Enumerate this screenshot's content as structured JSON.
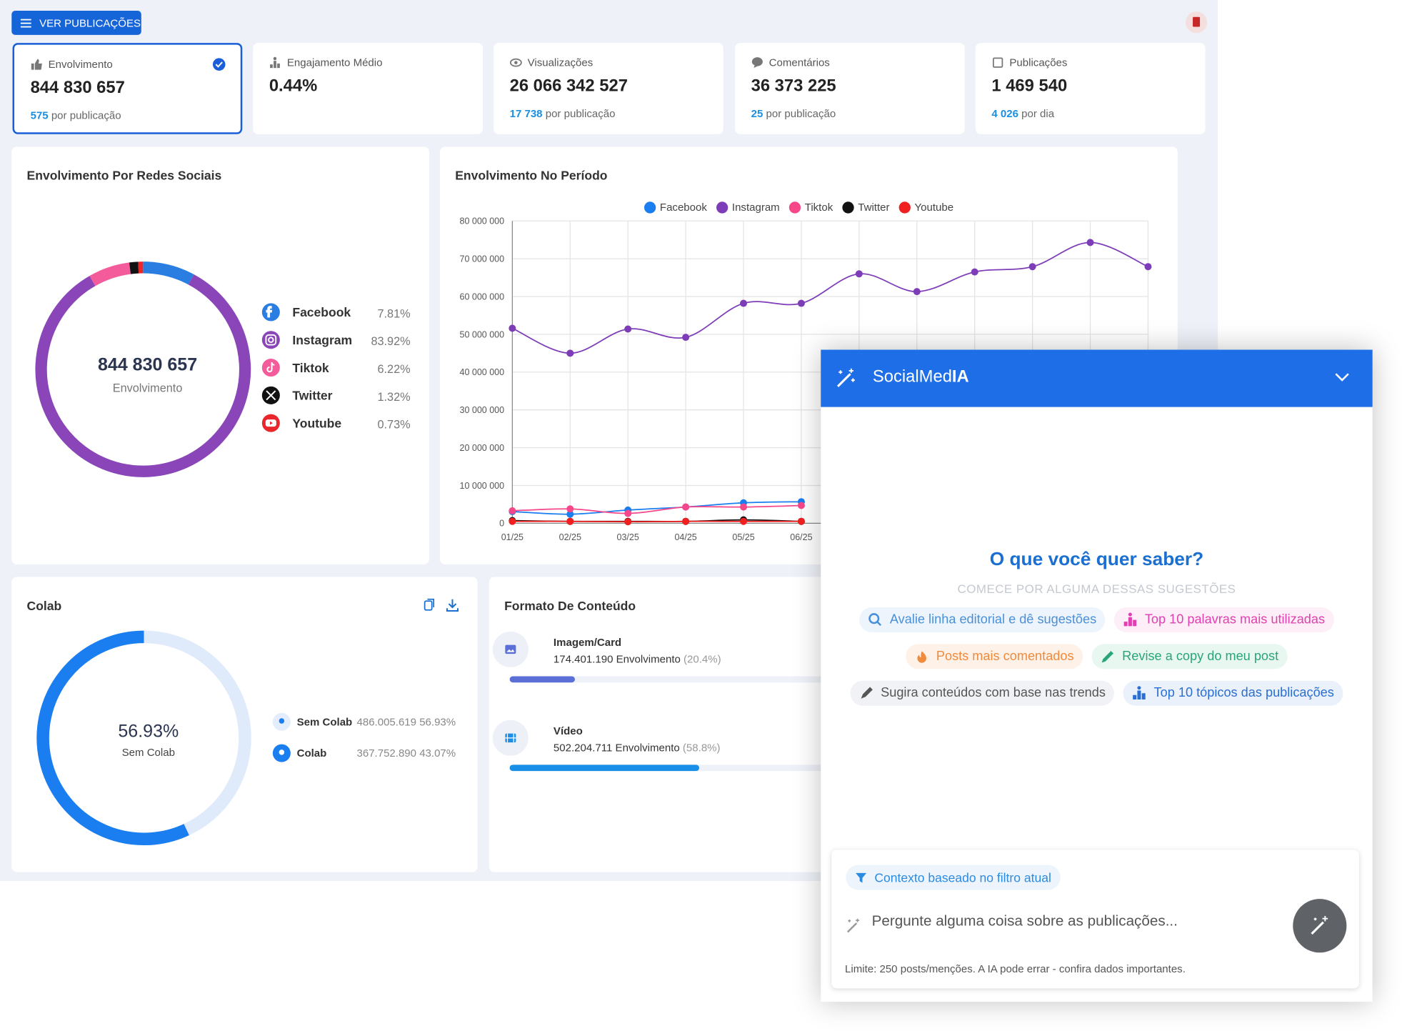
{
  "toolbar": {
    "button": "VER PUBLICAÇÕES"
  },
  "kpis": [
    {
      "label": "Envolvimento",
      "value": "844 830 657",
      "sub_value": "575",
      "sub_label": "por publicação"
    },
    {
      "label": "Engajamento Médio",
      "value": "0.44%"
    },
    {
      "label": "Visualizações",
      "value": "26 066 342 527",
      "sub_value": "17 738",
      "sub_label": "por publicação"
    },
    {
      "label": "Comentários",
      "value": "36 373 225",
      "sub_value": "25",
      "sub_label": "por publicação"
    },
    {
      "label": "Publicações",
      "value": "1 469 540",
      "sub_value": "4 026",
      "sub_label": "por dia"
    }
  ],
  "chart_data": [
    {
      "type": "donut",
      "title": "Envolvimento Por Redes Sociais",
      "center_value": "844 830 657",
      "center_label": "Envolvimento",
      "categories": [
        "Facebook",
        "Instagram",
        "Tiktok",
        "Twitter",
        "Youtube"
      ],
      "values": [
        7.81,
        83.92,
        6.22,
        1.32,
        0.73
      ],
      "value_labels": [
        "7.81%",
        "83.92%",
        "6.22%",
        "1.32%",
        "0.73%"
      ],
      "colors": [
        "#2a7de1",
        "#8a46b8",
        "#f45b9b",
        "#111111",
        "#e8262b"
      ]
    },
    {
      "type": "line",
      "title": "Envolvimento No Período",
      "categories": [
        "01/25",
        "02/25",
        "03/25",
        "04/25",
        "05/25",
        "06/25",
        null,
        null,
        null,
        null,
        null,
        null
      ],
      "ylim": [
        0,
        80000000
      ],
      "yticks": [
        0,
        {
          "value": 10000000,
          "label": "10 000 000"
        },
        {
          "value": 20000000,
          "label": "20 000 000"
        },
        {
          "value": 30000000,
          "label": "30 000 000"
        },
        {
          "value": 40000000,
          "label": "40 000 000"
        },
        {
          "value": 50000000,
          "label": "50 000 000"
        },
        {
          "value": 60000000,
          "label": "60 000 000"
        },
        {
          "value": 70000000,
          "label": "70 000 000"
        },
        {
          "value": 80000000,
          "label": "80 000 000"
        }
      ],
      "grid": true,
      "legend": "top",
      "series": [
        {
          "name": "Facebook",
          "color": "#1a7ef0",
          "values": [
            3100000,
            2400000,
            3500000,
            4300000,
            5400000,
            5700000,
            null,
            null,
            null,
            null,
            null,
            null
          ]
        },
        {
          "name": "Instagram",
          "color": "#7e3db8",
          "values": [
            51600000,
            45000000,
            51400000,
            49200000,
            58200000,
            58200000,
            66000000,
            61300000,
            66500000,
            67900000,
            74300000,
            67900000
          ]
        },
        {
          "name": "Tiktok",
          "color": "#f5478a",
          "values": [
            3300000,
            3800000,
            2600000,
            4300000,
            4300000,
            4700000,
            null,
            null,
            null,
            null,
            null,
            null
          ]
        },
        {
          "name": "Twitter",
          "color": "#111111",
          "values": [
            700000,
            500000,
            500000,
            500000,
            900000,
            500000,
            null,
            null,
            null,
            null,
            null,
            null
          ]
        },
        {
          "name": "Youtube",
          "color": "#f02020",
          "values": [
            500000,
            500000,
            400000,
            500000,
            500000,
            500000,
            null,
            null,
            null,
            null,
            null,
            null
          ]
        }
      ]
    },
    {
      "type": "donut",
      "title": "Colab",
      "direction": "counterclockwise",
      "categories": [
        "Sem Colab",
        "Colab"
      ],
      "values": [
        56.93,
        43.07
      ],
      "value_labels": [
        "56.93%",
        "43.07%"
      ],
      "amounts": [
        "486.005.619",
        "367.752.890"
      ],
      "colors": [
        "#1a7ef0",
        "#dfeafb"
      ]
    }
  ],
  "content_format": {
    "title": "Formato De Conteúdo",
    "unit": "Envolvimento",
    "items": [
      {
        "name": "Imagem/Card",
        "amount": "174.401.190",
        "share": 20.4,
        "share_label": "(20.4%)",
        "color": "#5b6fd6"
      },
      {
        "name": "Vídeo",
        "amount": "502.204.711",
        "share": 58.8,
        "share_label": "(58.8%)",
        "color": "#1a8fe8"
      }
    ]
  },
  "assistant": {
    "title": "SocialMed",
    "title_bold": "IA",
    "heading": "O que você quer saber?",
    "subheading": "COMECE POR ALGUMA DESSAS SUGESTÕES",
    "suggestions": [
      "Avalie linha editorial e dê sugestões",
      "Top 10 palavras mais utilizadas",
      "Posts mais comentados",
      "Revise a copy do meu post",
      "Sugira conteúdos com base nas trends",
      "Top 10 tópicos das publicações"
    ],
    "context": "Contexto baseado no filtro atual",
    "placeholder": "Pergunte alguma coisa sobre as publicações...",
    "footer": "Limite: 250 posts/menções. A IA pode errar - confira dados importantes."
  }
}
